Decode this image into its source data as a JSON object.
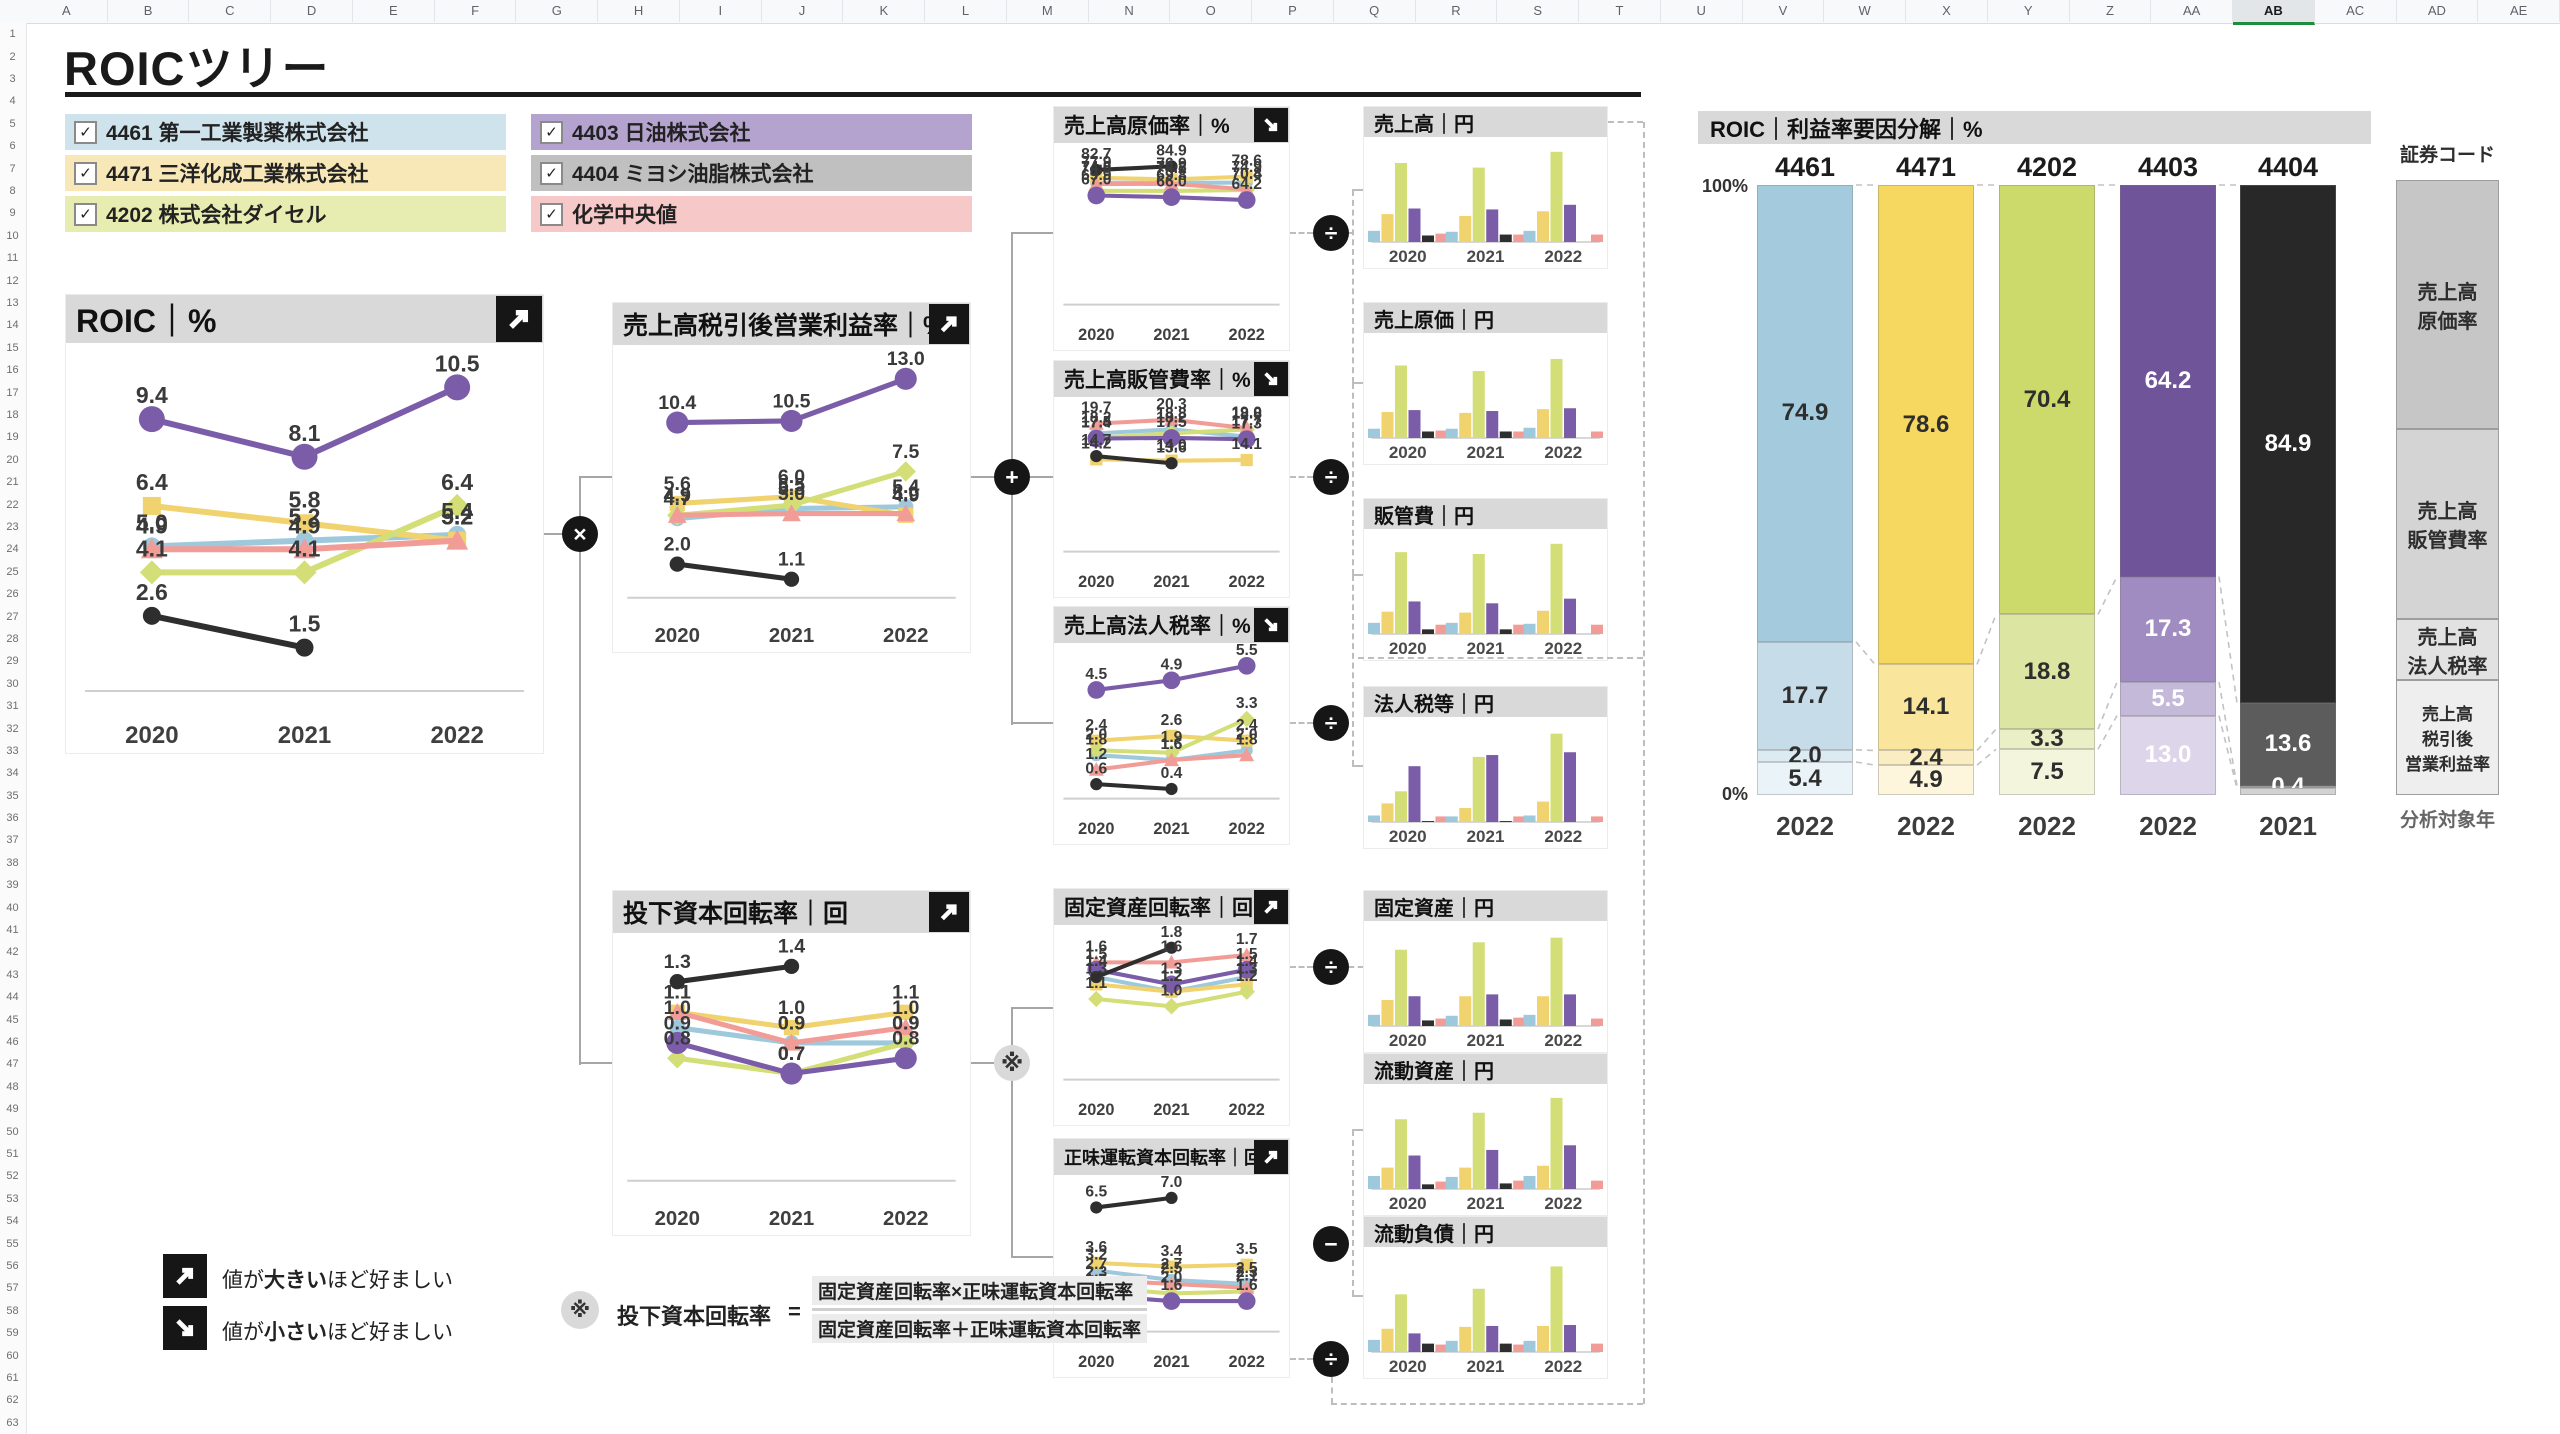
{
  "sheet": {
    "selected_column": "AB",
    "column_count": 31,
    "row_count": 63,
    "title": "ROICツリー"
  },
  "legend": {
    "companies": [
      {
        "key": "c4461",
        "code": "4461",
        "name": "第一工業製薬株式会社",
        "line_color": "#9ec9dc",
        "legend_bg": "#cfe3ed",
        "marker": "circle"
      },
      {
        "key": "c4471",
        "code": "4471",
        "name": "三洋化成工業株式会社",
        "line_color": "#f0d36e",
        "legend_bg": "#f8e8b7",
        "marker": "square"
      },
      {
        "key": "c4202",
        "code": "4202",
        "name": "株式会社ダイセル",
        "line_color": "#d4de77",
        "legend_bg": "#e7ecb0",
        "marker": "diamond"
      },
      {
        "key": "c4403",
        "code": "4403",
        "name": "日油株式会社",
        "line_color": "#7a5ca8",
        "legend_bg": "#b5a3cf",
        "marker": "circle_lg"
      },
      {
        "key": "c4404",
        "code": "4404",
        "name": "ミヨシ油脂株式会社",
        "line_color": "#2e2e2e",
        "legend_bg": "#c0c0c0",
        "marker": "circle"
      },
      {
        "key": "median",
        "code": "",
        "name": "化学中央値",
        "line_color": "#f29c97",
        "legend_bg": "#f6c8c8",
        "marker": "triangle"
      }
    ],
    "checkbox_glyph": "✓"
  },
  "operators": {
    "multiply": "×",
    "plus": "+",
    "divide": "÷",
    "minus": "−",
    "note_mark": "※"
  },
  "notes": [
    {
      "icon": "up",
      "prefix": "値が",
      "bold": "大きい",
      "suffix": "ほど好ましい"
    },
    {
      "icon": "down",
      "prefix": "値が",
      "bold": "小さい",
      "suffix": "ほど好ましい"
    }
  ],
  "formula": {
    "mark": "※",
    "lhs": "投下資本回転率",
    "equals": "=",
    "numerator": "固定資産回転率×正味運転資本回転率",
    "denominator": "固定資産回転率＋正味運転資本回転率"
  },
  "chart_data": {
    "years": [
      "2020",
      "2021",
      "2022"
    ],
    "line_charts": [
      {
        "id": "roic",
        "type": "line",
        "title": "ROIC｜%",
        "better": "up",
        "series": {
          "c4461": [
            5.0,
            5.2,
            5.4
          ],
          "c4471": [
            6.4,
            5.8,
            5.2
          ],
          "c4202": [
            4.1,
            4.1,
            6.4
          ],
          "c4403": [
            9.4,
            8.1,
            10.5
          ],
          "c4404": [
            2.6,
            1.5,
            null
          ],
          "median": [
            4.9,
            4.9,
            5.2
          ]
        }
      },
      {
        "id": "op_margin",
        "type": "line",
        "title": "売上高税引後営業利益率｜%",
        "better": "up",
        "series": {
          "c4461": [
            4.7,
            5.3,
            5.4
          ],
          "c4471": [
            5.6,
            6.0,
            4.9
          ],
          "c4202": [
            4.9,
            5.5,
            7.5
          ],
          "c4403": [
            10.4,
            10.5,
            13.0
          ],
          "c4404": [
            2.0,
            1.1,
            null
          ],
          "median": [
            4.9,
            5.0,
            5.0
          ]
        }
      },
      {
        "id": "capital_turnover",
        "type": "line",
        "title": "投下資本回転率｜回",
        "better": "up",
        "series": {
          "c4461": [
            1.0,
            0.9,
            0.9
          ],
          "c4471": [
            1.1,
            1.0,
            1.1
          ],
          "c4202": [
            0.8,
            0.7,
            0.9
          ],
          "c4403": [
            0.9,
            0.7,
            0.8
          ],
          "c4404": [
            1.3,
            1.4,
            null
          ],
          "median": [
            1.1,
            0.9,
            1.0
          ]
        }
      },
      {
        "id": "cogs_ratio",
        "type": "line",
        "title": "売上高原価率｜%",
        "better": "down",
        "series": {
          "c4461": [
            74.8,
            74.8,
            74.9
          ],
          "c4471": [
            77.9,
            76.9,
            78.6
          ],
          "c4202": [
            69.9,
            69.8,
            70.4
          ],
          "c4403": [
            67.0,
            66.0,
            64.2
          ],
          "c4404": [
            82.7,
            84.9,
            null
          ],
          "median": [
            74.0,
            74.2,
            70.8
          ]
        }
      },
      {
        "id": "sga_ratio",
        "type": "line",
        "title": "売上高販管費率｜%",
        "better": "down",
        "series": {
          "c4461": [
            18.2,
            18.8,
            17.7
          ],
          "c4471": [
            14.2,
            14.0,
            14.1
          ],
          "c4202": [
            17.5,
            18.2,
            18.8
          ],
          "c4403": [
            17.4,
            17.5,
            17.3
          ],
          "c4404": [
            14.7,
            13.6,
            null
          ],
          "median": [
            19.7,
            20.3,
            19.0
          ]
        }
      },
      {
        "id": "tax_ratio",
        "type": "line",
        "title": "売上高法人税率｜%",
        "better": "down",
        "series": {
          "c4461": [
            1.8,
            1.6,
            2.0
          ],
          "c4471": [
            2.4,
            2.6,
            2.4
          ],
          "c4202": [
            2.0,
            1.9,
            3.3
          ],
          "c4403": [
            4.5,
            4.9,
            5.5
          ],
          "c4404": [
            0.6,
            0.4,
            null
          ],
          "median": [
            1.2,
            1.6,
            1.8
          ]
        }
      },
      {
        "id": "fixed_asset_turnover",
        "type": "line",
        "title": "固定資産回転率｜回",
        "better": "up",
        "series": {
          "c4461": [
            1.4,
            1.2,
            1.4
          ],
          "c4471": [
            1.3,
            1.2,
            1.3
          ],
          "c4202": [
            1.1,
            1.0,
            1.2
          ],
          "c4403": [
            1.5,
            1.3,
            1.5
          ],
          "c4404": [
            1.4,
            1.8,
            null
          ],
          "median": [
            1.6,
            1.6,
            1.7
          ]
        }
      },
      {
        "id": "nwc_turnover",
        "type": "line",
        "title": "正味運転資本回転率｜回",
        "better": "up",
        "series": {
          "c4461": [
            3.2,
            2.7,
            2.5
          ],
          "c4471": [
            3.6,
            3.4,
            3.5
          ],
          "c4202": [
            2.3,
            2.0,
            2.1
          ],
          "c4403": [
            1.9,
            1.6,
            1.6
          ],
          "c4404": [
            6.5,
            7.0,
            null
          ],
          "median": [
            2.7,
            2.5,
            2.3
          ]
        }
      }
    ],
    "bar_charts": [
      {
        "id": "sales",
        "type": "bar",
        "title": "売上高｜円",
        "values": [
          [
            0.12,
            0.3,
            0.85,
            0.36,
            0.07,
            0.09
          ],
          [
            0.11,
            0.28,
            0.8,
            0.35,
            0.08,
            0.08
          ],
          [
            0.12,
            0.33,
            0.97,
            0.4,
            0,
            0.08
          ]
        ]
      },
      {
        "id": "cogs",
        "type": "bar",
        "title": "売上原価｜円",
        "values": [
          [
            0.1,
            0.28,
            0.78,
            0.3,
            0.07,
            0.08
          ],
          [
            0.1,
            0.27,
            0.72,
            0.29,
            0.07,
            0.07
          ],
          [
            0.11,
            0.31,
            0.85,
            0.32,
            0,
            0.07
          ]
        ]
      },
      {
        "id": "sga",
        "type": "bar",
        "title": "販管費｜円",
        "values": [
          [
            0.12,
            0.24,
            0.88,
            0.35,
            0.05,
            0.1
          ],
          [
            0.12,
            0.23,
            0.86,
            0.33,
            0.05,
            0.1
          ],
          [
            0.11,
            0.25,
            0.97,
            0.38,
            0,
            0.1
          ]
        ]
      },
      {
        "id": "tax",
        "type": "bar",
        "title": "法人税等｜円",
        "values": [
          [
            0.07,
            0.2,
            0.33,
            0.6,
            0.01,
            0.06
          ],
          [
            0.06,
            0.15,
            0.7,
            0.72,
            0.01,
            0.06
          ],
          [
            0.07,
            0.22,
            0.95,
            0.75,
            0,
            0.06
          ]
        ]
      },
      {
        "id": "fixed_assets",
        "type": "bar",
        "title": "固定資産｜円",
        "values": [
          [
            0.12,
            0.28,
            0.82,
            0.32,
            0.06,
            0.08
          ],
          [
            0.11,
            0.32,
            0.9,
            0.34,
            0.07,
            0.09
          ],
          [
            0.12,
            0.32,
            0.95,
            0.34,
            0,
            0.08
          ]
        ]
      },
      {
        "id": "current_assets",
        "type": "bar",
        "title": "流動資産｜円",
        "values": [
          [
            0.14,
            0.23,
            0.75,
            0.36,
            0.05,
            0.08
          ],
          [
            0.13,
            0.23,
            0.82,
            0.42,
            0.06,
            0.09
          ],
          [
            0.14,
            0.25,
            0.98,
            0.47,
            0,
            0.09
          ]
        ]
      },
      {
        "id": "current_liabilities",
        "type": "bar",
        "title": "流動負債｜円",
        "values": [
          [
            0.13,
            0.25,
            0.62,
            0.2,
            0.09,
            0.08
          ],
          [
            0.12,
            0.27,
            0.68,
            0.28,
            0.09,
            0.08
          ],
          [
            0.12,
            0.28,
            0.92,
            0.29,
            0,
            0.09
          ]
        ]
      }
    ],
    "stacked_chart": {
      "type": "stacked_bar",
      "title": "ROIC｜利益率要因分解｜%",
      "y_axis": {
        "top": "100%",
        "bottom": "0%"
      },
      "metrics": [
        "売上高原価率",
        "売上高販管費率",
        "売上高法人税率",
        "売上高税引後営業利益率"
      ],
      "columns": [
        {
          "code": "4461",
          "year": "2022",
          "values": [
            74.9,
            17.7,
            2.0,
            5.4
          ],
          "colors": [
            "#a3cbdd",
            "#c6dde9",
            "#dcebf2",
            "#eaf3f7"
          ],
          "label_color": "#2e2e2e"
        },
        {
          "code": "4471",
          "year": "2022",
          "values": [
            78.6,
            14.1,
            2.4,
            4.9
          ],
          "colors": [
            "#f6d75f",
            "#f9e59c",
            "#fbedc2",
            "#fdf5dc"
          ],
          "label_color": "#2e2e2e"
        },
        {
          "code": "4202",
          "year": "2022",
          "values": [
            70.4,
            18.8,
            3.3,
            7.5
          ],
          "colors": [
            "#ccd96b",
            "#dde5a2",
            "#eaefc5",
            "#f3f5dc"
          ],
          "label_color": "#2e2e2e"
        },
        {
          "code": "4403",
          "year": "2022",
          "values": [
            64.2,
            17.3,
            5.5,
            13.0
          ],
          "colors": [
            "#6f5499",
            "#a18cc1",
            "#c5b9da",
            "#ddd5e9"
          ],
          "label_color": "#ffffff"
        },
        {
          "code": "4404",
          "year": "2021",
          "values": [
            84.9,
            13.6,
            0.4,
            1.1
          ],
          "colors": [
            "#282828",
            "#5c5c5c",
            "#a8a8a8",
            "#d2d2d2"
          ],
          "label_color": "#ffffff"
        }
      ]
    },
    "metric_legend": {
      "header": "証券コード",
      "segments": [
        {
          "lines": [
            "売上高",
            "原価率"
          ],
          "frac": 0.405,
          "bg": "#c6c6c6"
        },
        {
          "lines": [
            "売上高",
            "販管費率"
          ],
          "frac": 0.309,
          "bg": "#d4d4d4"
        },
        {
          "lines": [
            "売上高",
            "法人税率"
          ],
          "frac": 0.099,
          "bg": "#e2e2e2"
        },
        {
          "lines": [
            "売上高",
            "税引後",
            "営業利益率"
          ],
          "frac": 0.187,
          "bg": "#eeeeee"
        }
      ],
      "footer": "分析対象年"
    }
  }
}
